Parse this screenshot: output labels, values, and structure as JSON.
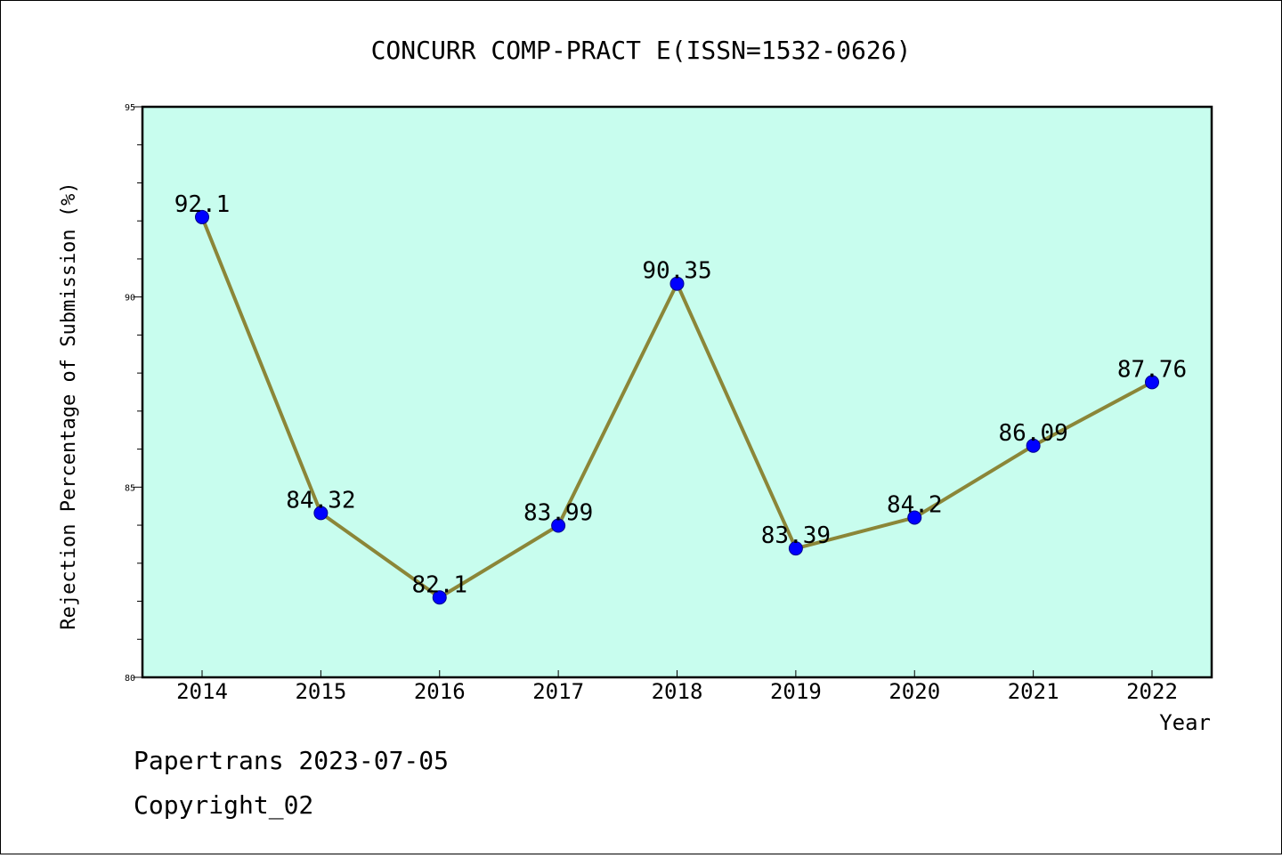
{
  "chart_data": {
    "type": "line",
    "title": "CONCURR COMP-PRACT E(ISSN=1532-0626)",
    "xlabel": "Year",
    "ylabel": "Rejection Percentage of Submission (%)",
    "categories": [
      "2014",
      "2015",
      "2016",
      "2017",
      "2018",
      "2019",
      "2020",
      "2021",
      "2022"
    ],
    "series": [
      {
        "values": [
          92.1,
          84.32,
          82.1,
          83.99,
          90.35,
          83.39,
          84.2,
          86.09,
          87.76
        ],
        "data_labels": [
          "92.1",
          "84.32",
          "82.1",
          "83.99",
          "90.35",
          "83.39",
          "84.2",
          "86.09",
          "87.76"
        ]
      }
    ],
    "ylim": [
      80,
      95
    ],
    "yticks": [
      80,
      85,
      90,
      95
    ],
    "ytick_labels": [
      "80",
      "85",
      "90",
      "95"
    ],
    "y_minor_step": 1,
    "grid": false,
    "colors": {
      "plot_background": "#c8fdee",
      "line": "#8b8638",
      "marker": "#0000ff",
      "frame": "#000000"
    }
  },
  "footer": {
    "line1": "Papertrans 2023-07-05",
    "line2": "Copyright_02"
  }
}
